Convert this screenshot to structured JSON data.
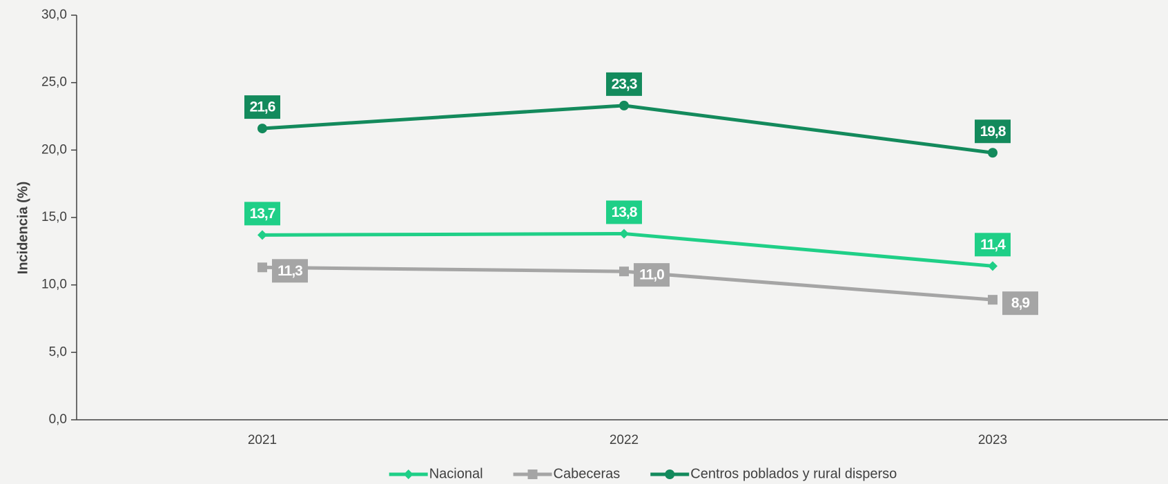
{
  "chart_data": {
    "type": "line",
    "y_label": "Incidencia (%)",
    "categories": [
      "2021",
      "2022",
      "2023"
    ],
    "series": [
      {
        "name": "Nacional",
        "color": "#1fcf87",
        "marker": "diamond",
        "values": [
          13.7,
          13.8,
          11.4
        ],
        "value_labels": [
          "13,7",
          "13,8",
          "11,4"
        ]
      },
      {
        "name": "Cabeceras",
        "color": "#a5a5a5",
        "marker": "square",
        "values": [
          11.3,
          11.0,
          8.9
        ],
        "value_labels": [
          "11,3",
          "11,0",
          "8,9"
        ]
      },
      {
        "name": "Centros poblados y rural disperso",
        "color": "#138a5c",
        "marker": "circle",
        "values": [
          21.6,
          23.3,
          19.8
        ],
        "value_labels": [
          "21,6",
          "23,3",
          "19,8"
        ]
      }
    ],
    "ylim": [
      0,
      30
    ],
    "yticks": [
      {
        "value": 0,
        "label": "0,0"
      },
      {
        "value": 5,
        "label": "5,0"
      },
      {
        "value": 10,
        "label": "10,0"
      },
      {
        "value": 15,
        "label": "15,0"
      },
      {
        "value": 20,
        "label": "20,0"
      },
      {
        "value": 25,
        "label": "25,0"
      },
      {
        "value": 30,
        "label": "30,0"
      }
    ],
    "grid": false,
    "legend": "bottom"
  }
}
